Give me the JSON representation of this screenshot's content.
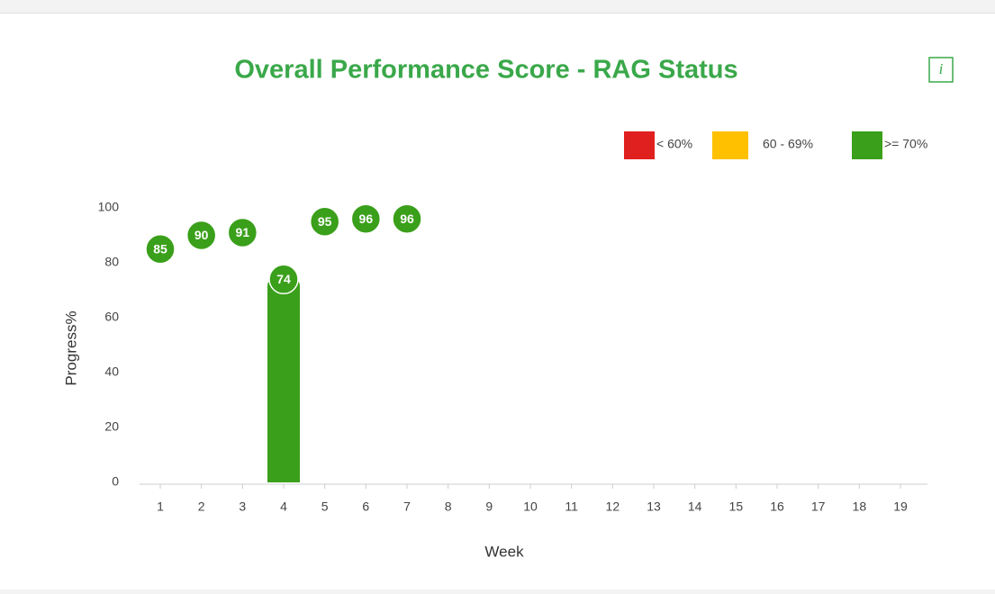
{
  "chart_data": {
    "type": "bar",
    "title": "Overall Performance Score - RAG Status",
    "info_icon": "i",
    "legend": [
      {
        "label": "< 60%",
        "color": "#e0201f"
      },
      {
        "label": "60 - 69%",
        "color": "#ffc000"
      },
      {
        "label": ">= 70%",
        "color": "#3a9f1a"
      }
    ],
    "x_label": "Week",
    "y_label": "Progress%",
    "categories": [
      "1",
      "2",
      "3",
      "4",
      "5",
      "6",
      "7",
      "8",
      "9",
      "10",
      "11",
      "12",
      "13",
      "14",
      "15",
      "16",
      "17",
      "18",
      "19"
    ],
    "values": [
      85,
      90,
      91,
      74,
      95,
      96,
      96,
      null,
      null,
      null,
      null,
      null,
      null,
      null,
      null,
      null,
      null,
      null,
      null
    ],
    "highlight": "4",
    "color": "#3a9f1a",
    "ylim": [
      0,
      100
    ],
    "yticks": [
      0,
      20,
      40,
      60,
      80,
      100
    ],
    "grid": false
  }
}
